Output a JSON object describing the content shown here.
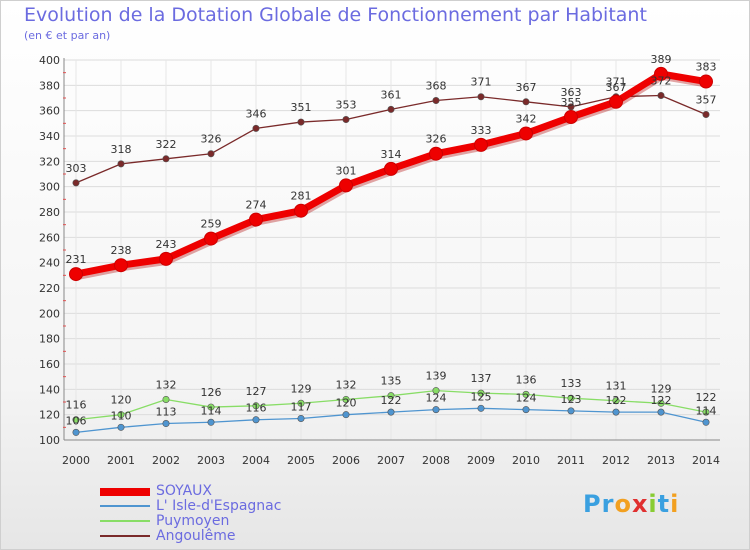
{
  "chart_data": {
    "type": "line",
    "title": "Evolution de la Dotation Globale de Fonctionnement par Habitant",
    "subtitle": "(en € et par an)",
    "xlabel": "",
    "ylabel": "",
    "x": [
      "2000",
      "2001",
      "2002",
      "2003",
      "2004",
      "2005",
      "2006",
      "2007",
      "2008",
      "2009",
      "2010",
      "2011",
      "2012",
      "2013",
      "2014"
    ],
    "ylim": [
      100,
      400
    ],
    "yticks": [
      "100",
      "120",
      "140",
      "160",
      "180",
      "200",
      "220",
      "240",
      "260",
      "280",
      "300",
      "320",
      "340",
      "360",
      "380",
      "400"
    ],
    "grid": true,
    "legend_position": "bottom-left",
    "series": [
      {
        "name": "SOYAUX",
        "color": "#ee0000",
        "values": [
          231,
          238,
          243,
          259,
          274,
          281,
          301,
          314,
          326,
          333,
          342,
          355,
          367,
          389,
          383
        ]
      },
      {
        "name": "L' Isle-d'Espagnac",
        "color": "#4f95d0",
        "values": [
          106,
          110,
          113,
          114,
          116,
          117,
          120,
          122,
          124,
          125,
          124,
          123,
          122,
          122,
          114
        ]
      },
      {
        "name": "Puymoyen",
        "color": "#88dd66",
        "values": [
          116,
          120,
          132,
          126,
          127,
          129,
          132,
          135,
          139,
          137,
          136,
          133,
          131,
          129,
          122
        ]
      },
      {
        "name": "Angoulême",
        "color": "#7a2a2a",
        "values": [
          303,
          318,
          322,
          326,
          346,
          351,
          353,
          361,
          368,
          371,
          367,
          363,
          371,
          372,
          357
        ]
      }
    ]
  },
  "logo": {
    "p": "Pr",
    "o": "o",
    "x": "x",
    "i": "i",
    "t": "t",
    "i2": "i"
  }
}
